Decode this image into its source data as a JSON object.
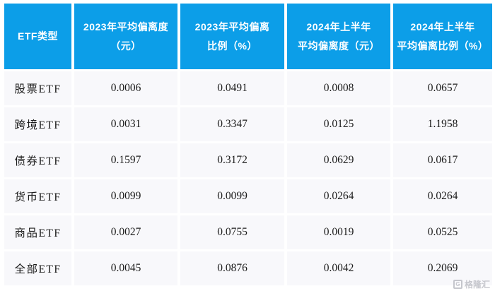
{
  "table": {
    "header_bg": "#0C9EE8",
    "header_text_color": "#FFFFFF",
    "row_bg": "#F8F8FB",
    "columns": [
      "ETF类型",
      "2023年平均偏离度\n（元）",
      "2023年平均偏离\n比例（%）",
      "2024年上半年\n平均偏离度（元）",
      "2024年上半年\n平均偏离比例（%）"
    ],
    "rows": [
      [
        "股票ETF",
        "0.0006",
        "0.0491",
        "0.0008",
        "0.0657"
      ],
      [
        "跨境ETF",
        "0.0031",
        "0.3347",
        "0.0125",
        "1.1958"
      ],
      [
        "债券ETF",
        "0.1597",
        "0.3172",
        "0.0629",
        "0.0617"
      ],
      [
        "货币ETF",
        "0.0099",
        "0.0099",
        "0.0264",
        "0.0264"
      ],
      [
        "商品ETF",
        "0.0027",
        "0.0755",
        "0.0019",
        "0.0525"
      ],
      [
        "全部ETF",
        "0.0045",
        "0.0876",
        "0.0042",
        "0.2069"
      ]
    ]
  },
  "watermark": {
    "logo": "G",
    "text": "格隆汇"
  },
  "chart_data": {
    "type": "table",
    "title": "",
    "columns": [
      "ETF类型",
      "2023年平均偏离度（元）",
      "2023年平均偏离比例（%）",
      "2024年上半年平均偏离度（元）",
      "2024年上半年平均偏离比例（%）"
    ],
    "rows": [
      [
        "股票ETF",
        0.0006,
        0.0491,
        0.0008,
        0.0657
      ],
      [
        "跨境ETF",
        0.0031,
        0.3347,
        0.0125,
        1.1958
      ],
      [
        "债券ETF",
        0.1597,
        0.3172,
        0.0629,
        0.0617
      ],
      [
        "货币ETF",
        0.0099,
        0.0099,
        0.0264,
        0.0264
      ],
      [
        "商品ETF",
        0.0027,
        0.0755,
        0.0019,
        0.0525
      ],
      [
        "全部ETF",
        0.0045,
        0.0876,
        0.0042,
        0.2069
      ]
    ]
  }
}
